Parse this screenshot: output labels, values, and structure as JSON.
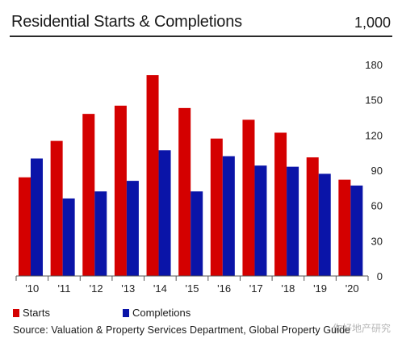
{
  "header": {
    "title": "Residential Starts & Completions",
    "unit": "1,000"
  },
  "legend": {
    "starts_label": "Starts",
    "completions_label": "Completions"
  },
  "source": "Source: Valuation & Property Services Department, Global Property Guide",
  "watermark": "你好地产研究",
  "colors": {
    "starts": "#d40000",
    "completions": "#0a14a8"
  },
  "chart_data": {
    "type": "bar",
    "categories": [
      "'10",
      "'11",
      "'12",
      "'13",
      "'14",
      "'15",
      "'16",
      "'17",
      "'18",
      "'19",
      "'20"
    ],
    "series": [
      {
        "name": "Starts",
        "values": [
          84,
          115,
          138,
          145,
          171,
          143,
          117,
          133,
          122,
          101,
          82
        ]
      },
      {
        "name": "Completions",
        "values": [
          100,
          66,
          72,
          81,
          107,
          72,
          102,
          94,
          93,
          87,
          77
        ]
      }
    ],
    "ylim": [
      0,
      180
    ],
    "yticks": [
      0,
      30,
      60,
      90,
      120,
      150,
      180
    ],
    "ytick_labels": [
      "0",
      "30",
      "60",
      "90",
      "120",
      "150",
      "180"
    ],
    "y_axis_side": "right",
    "grid": false
  }
}
